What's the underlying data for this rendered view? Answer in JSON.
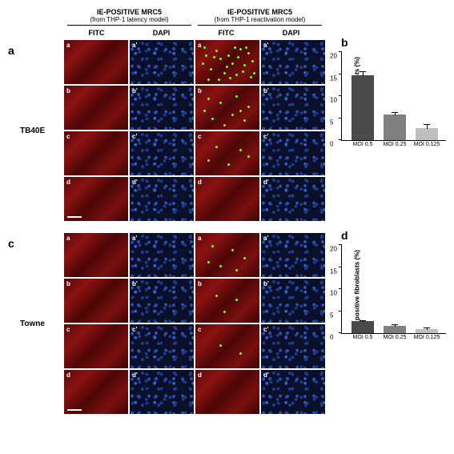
{
  "headers": {
    "left": {
      "title": "IE-POSITIVE MRC5",
      "sub": "(from THP-1 latency model)"
    },
    "right": {
      "title": "IE-POSITIVE MRC5",
      "sub": "(from THP-1 reactivation model)"
    }
  },
  "subheaders": [
    "FITC",
    "DAPI",
    "FITC",
    "DAPI"
  ],
  "panels": {
    "a": {
      "strain": "TB40E",
      "rows": [
        "a",
        "b",
        "c",
        "d"
      ]
    },
    "c": {
      "strain": "Towne",
      "rows": [
        "a",
        "b",
        "c",
        "d"
      ]
    }
  },
  "dots": {
    "tb40e_react_a": [
      [
        10,
        8
      ],
      [
        25,
        12
      ],
      [
        40,
        18
      ],
      [
        55,
        10
      ],
      [
        60,
        30
      ],
      [
        18,
        35
      ],
      [
        35,
        40
      ],
      [
        50,
        42
      ],
      [
        70,
        25
      ],
      [
        15,
        48
      ],
      [
        45,
        28
      ],
      [
        65,
        15
      ],
      [
        30,
        22
      ],
      [
        8,
        28
      ],
      [
        72,
        40
      ],
      [
        22,
        20
      ],
      [
        48,
        8
      ],
      [
        58,
        38
      ],
      [
        12,
        18
      ],
      [
        38,
        32
      ],
      [
        68,
        45
      ],
      [
        28,
        48
      ],
      [
        52,
        20
      ],
      [
        42,
        46
      ],
      [
        62,
        8
      ]
    ],
    "tb40e_react_b": [
      [
        15,
        15
      ],
      [
        30,
        20
      ],
      [
        50,
        12
      ],
      [
        65,
        25
      ],
      [
        20,
        40
      ],
      [
        45,
        35
      ],
      [
        60,
        42
      ],
      [
        35,
        48
      ],
      [
        10,
        30
      ],
      [
        55,
        30
      ]
    ],
    "tb40e_react_c": [
      [
        25,
        18
      ],
      [
        55,
        22
      ],
      [
        40,
        40
      ],
      [
        15,
        35
      ],
      [
        65,
        30
      ]
    ],
    "towne_react_a": [
      [
        20,
        15
      ],
      [
        45,
        20
      ],
      [
        60,
        30
      ],
      [
        30,
        40
      ],
      [
        15,
        35
      ],
      [
        50,
        45
      ]
    ],
    "towne_react_b": [
      [
        25,
        20
      ],
      [
        50,
        25
      ],
      [
        35,
        40
      ]
    ],
    "towne_react_c": [
      [
        30,
        25
      ],
      [
        55,
        35
      ]
    ]
  },
  "charts": {
    "b": {
      "ylabel": "IE positive fibroblasts (%)",
      "ymax": 20,
      "ytick": 5,
      "bars": [
        {
          "label": "MOI 0.5",
          "value": 14.8,
          "err": 0.8,
          "color": "#4a4a4a"
        },
        {
          "label": "MOI 0.25",
          "value": 5.9,
          "err": 0.4,
          "color": "#808080"
        },
        {
          "label": "MOI 0.125",
          "value": 2.7,
          "err": 1.0,
          "color": "#bfbfbf"
        }
      ]
    },
    "d": {
      "ylabel": "IE positive fibroblasts (%)",
      "ymax": 20,
      "ytick": 5,
      "bars": [
        {
          "label": "MOI 0.5",
          "value": 2.7,
          "err": 0.3,
          "color": "#4a4a4a"
        },
        {
          "label": "MOI 0.25",
          "value": 1.7,
          "err": 0.3,
          "color": "#808080"
        },
        {
          "label": "MOI 0.125",
          "value": 1.0,
          "err": 0.2,
          "color": "#bfbfbf"
        }
      ]
    }
  }
}
